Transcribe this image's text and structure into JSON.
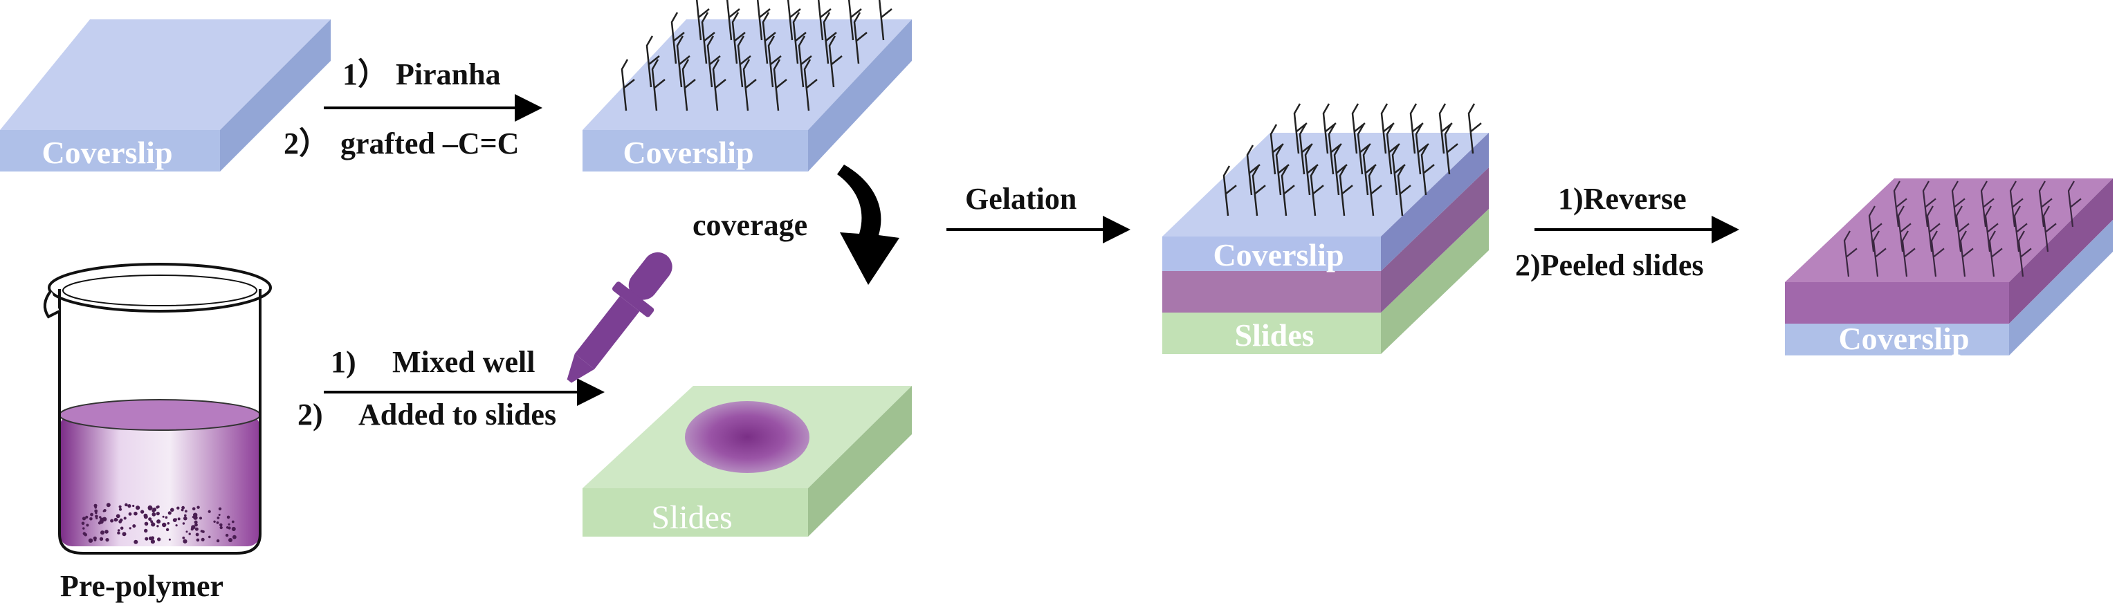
{
  "labels": {
    "coverslip_1": "Coverslip",
    "coverslip_2": "Coverslip",
    "coverslip_3": "Coverslip",
    "coverslip_4": "Coverslip",
    "slides_1": "Slides",
    "slides_2": "Slides",
    "pre_polymer": "Pre-polymer",
    "coverage": "coverage",
    "gelation": "Gelation"
  },
  "steps": {
    "piranha_num": "1）",
    "piranha": "Piranha",
    "grafted_num": "2）",
    "grafted": "grafted –C=C",
    "mixed_num": "1)",
    "mixed": "Mixed well",
    "added_num": "2)",
    "added": "Added to slides",
    "reverse": "1)Reverse",
    "peeled": "2)Peeled slides"
  },
  "colors": {
    "coverslip_top": "#c4cff0",
    "coverslip_front": "#afc0e8",
    "coverslip_side": "#93a6d6",
    "slides_top": "#cfe8c5",
    "slides_front": "#c2e1b5",
    "slides_side": "#9fc191",
    "gel": "#9b62a6",
    "gel_dark": "#7a3d88",
    "dropper": "#7b3f93",
    "arrow": "#000000"
  }
}
